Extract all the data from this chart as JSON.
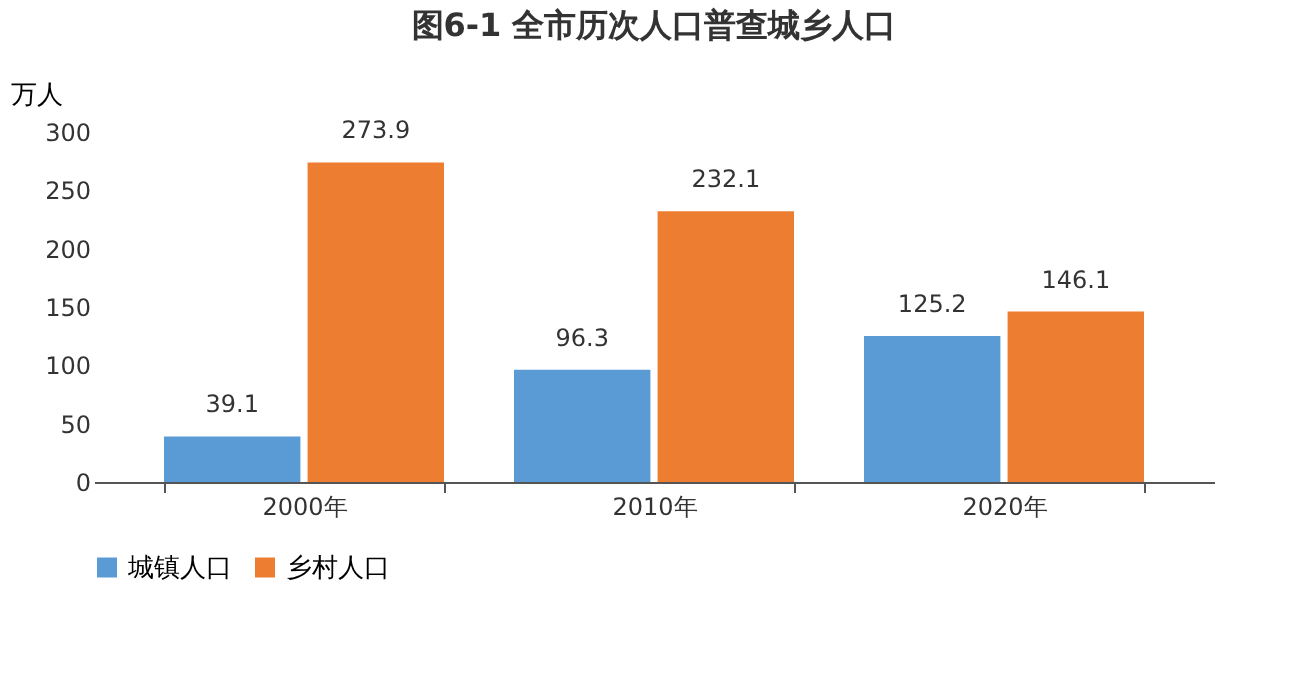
{
  "chart_data": {
    "type": "bar",
    "title": "图6-1  全市历次人口普查城乡人口",
    "ylabel": "万人",
    "categories": [
      "2000年",
      "2010年",
      "2020年"
    ],
    "series": [
      {
        "name": "城镇人口",
        "color": "#5b9bd5",
        "values": [
          39.1,
          96.3,
          125.2
        ]
      },
      {
        "name": "乡村人口",
        "color": "#ed7d31",
        "values": [
          273.9,
          232.1,
          146.1
        ]
      }
    ],
    "ylim": [
      0,
      300
    ],
    "yticks": [
      0,
      50,
      100,
      150,
      200,
      250,
      300
    ],
    "grid": false,
    "legend": "bottom",
    "data_labels": true
  }
}
